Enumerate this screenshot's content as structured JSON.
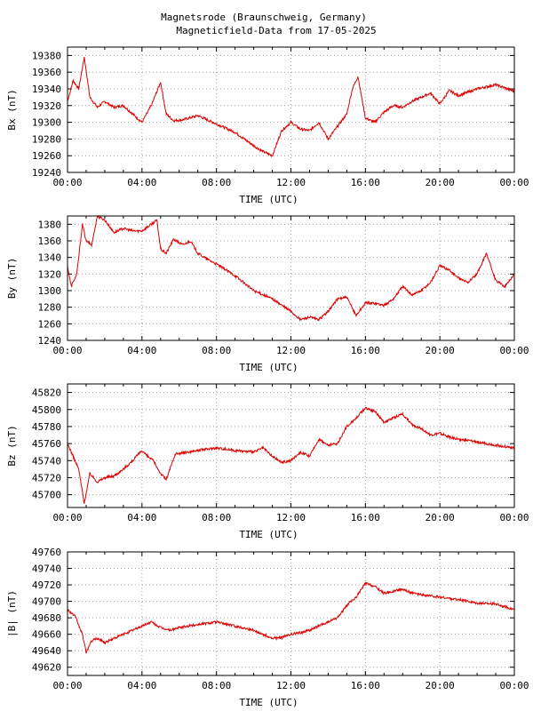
{
  "title_line1": "Magnetsrode (Braunschweig, Germany)",
  "title_line2": "Magneticfield-Data from 17-05-2025",
  "series_color": "#dd0000",
  "chart_data": [
    {
      "type": "line",
      "ylabel": "Bx (nT)",
      "xlabel": "TIME (UTC)",
      "xlim": [
        0,
        24
      ],
      "xticks": [
        "00:00",
        "04:00",
        "08:00",
        "12:00",
        "16:00",
        "20:00",
        "00:00"
      ],
      "ylim": [
        19240,
        19390
      ],
      "yticks": [
        19240,
        19260,
        19280,
        19300,
        19320,
        19340,
        19360,
        19380
      ],
      "series": [
        {
          "x": [
            0,
            0.3,
            0.6,
            0.9,
            1.2,
            1.6,
            2.0,
            2.5,
            3.0,
            3.5,
            4.0,
            4.5,
            5.0,
            5.3,
            5.7,
            6.2,
            7.0,
            8.0,
            9.0,
            10.0,
            10.5,
            11.0,
            11.5,
            12.0,
            12.5,
            13.0,
            13.5,
            14.0,
            14.5,
            15.0,
            15.3,
            15.6,
            16.0,
            16.5,
            17.0,
            17.5,
            18.0,
            18.5,
            19.0,
            19.5,
            20.0,
            20.5,
            21.0,
            22.0,
            23.0,
            24.0
          ],
          "y": [
            19325,
            19350,
            19340,
            19378,
            19330,
            19318,
            19325,
            19318,
            19320,
            19310,
            19300,
            19320,
            19348,
            19310,
            19302,
            19303,
            19308,
            19298,
            19288,
            19272,
            19265,
            19260,
            19290,
            19300,
            19292,
            19290,
            19300,
            19280,
            19295,
            19310,
            19340,
            19355,
            19305,
            19300,
            19312,
            19320,
            19318,
            19325,
            19330,
            19335,
            19322,
            19338,
            19332,
            19340,
            19345,
            19337
          ]
        }
      ]
    },
    {
      "type": "line",
      "ylabel": "By (nT)",
      "xlabel": "TIME (UTC)",
      "xlim": [
        0,
        24
      ],
      "xticks": [
        "00:00",
        "04:00",
        "08:00",
        "12:00",
        "16:00",
        "20:00",
        "00:00"
      ],
      "ylim": [
        1240,
        1390
      ],
      "yticks": [
        1240,
        1260,
        1280,
        1300,
        1320,
        1340,
        1360,
        1380
      ],
      "series": [
        {
          "x": [
            0,
            0.2,
            0.5,
            0.8,
            1.0,
            1.3,
            1.6,
            2.0,
            2.5,
            3.0,
            3.5,
            4.0,
            4.5,
            4.8,
            5.0,
            5.3,
            5.7,
            6.2,
            6.6,
            7.0,
            7.5,
            8.0,
            9.0,
            10.0,
            11.0,
            12.0,
            12.5,
            13.0,
            13.5,
            14.0,
            14.5,
            15.0,
            15.5,
            16.0,
            16.5,
            17.0,
            17.5,
            18.0,
            18.5,
            19.0,
            19.5,
            20.0,
            20.5,
            21.0,
            21.5,
            22.0,
            22.5,
            23.0,
            23.5,
            24.0
          ],
          "y": [
            1330,
            1305,
            1320,
            1380,
            1360,
            1355,
            1390,
            1385,
            1370,
            1375,
            1372,
            1372,
            1380,
            1385,
            1350,
            1345,
            1362,
            1355,
            1360,
            1345,
            1338,
            1332,
            1318,
            1300,
            1290,
            1275,
            1265,
            1268,
            1265,
            1275,
            1290,
            1292,
            1270,
            1285,
            1285,
            1282,
            1290,
            1305,
            1295,
            1300,
            1310,
            1330,
            1325,
            1315,
            1310,
            1320,
            1345,
            1312,
            1305,
            1320
          ]
        }
      ]
    },
    {
      "type": "line",
      "ylabel": "Bz (nT)",
      "xlabel": "TIME (UTC)",
      "xlim": [
        0,
        24
      ],
      "xticks": [
        "00:00",
        "04:00",
        "08:00",
        "12:00",
        "16:00",
        "20:00",
        "00:00"
      ],
      "ylim": [
        45685,
        45830
      ],
      "yticks": [
        45700,
        45720,
        45740,
        45760,
        45780,
        45800,
        45820
      ],
      "series": [
        {
          "x": [
            0,
            0.3,
            0.6,
            0.9,
            1.2,
            1.6,
            2.0,
            2.5,
            3.0,
            3.5,
            4.0,
            4.3,
            4.6,
            5.0,
            5.3,
            5.8,
            6.5,
            7.0,
            8.0,
            9.0,
            10.0,
            10.5,
            11.0,
            11.5,
            12.0,
            12.5,
            13.0,
            13.5,
            14.0,
            14.5,
            15.0,
            15.5,
            16.0,
            16.5,
            17.0,
            17.5,
            18.0,
            18.5,
            19.0,
            19.5,
            20.0,
            20.5,
            21.0,
            22.0,
            23.0,
            24.0
          ],
          "y": [
            45760,
            45745,
            45730,
            45690,
            45725,
            45715,
            45720,
            45722,
            45730,
            45740,
            45752,
            45745,
            45740,
            45725,
            45718,
            45748,
            45750,
            45752,
            45755,
            45752,
            45750,
            45755,
            45745,
            45738,
            45740,
            45750,
            45745,
            45765,
            45758,
            45760,
            45780,
            45790,
            45802,
            45798,
            45785,
            45790,
            45795,
            45782,
            45778,
            45770,
            45772,
            45768,
            45765,
            45762,
            45758,
            45755
          ]
        }
      ]
    },
    {
      "type": "line",
      "ylabel": "|B| (nT)",
      "xlabel": "TIME (UTC)",
      "xlim": [
        0,
        24
      ],
      "xticks": [
        "00:00",
        "04:00",
        "08:00",
        "12:00",
        "16:00",
        "20:00",
        "00:00"
      ],
      "ylim": [
        49610,
        49760
      ],
      "yticks": [
        49620,
        49640,
        49660,
        49680,
        49700,
        49720,
        49740,
        49760
      ],
      "series": [
        {
          "x": [
            0,
            0.4,
            0.8,
            1.0,
            1.3,
            1.6,
            2.0,
            2.5,
            3.0,
            3.5,
            4.0,
            4.5,
            5.0,
            5.5,
            6.0,
            7.0,
            8.0,
            9.0,
            10.0,
            10.5,
            11.0,
            11.5,
            12.0,
            12.5,
            13.0,
            13.5,
            14.0,
            14.5,
            15.0,
            15.5,
            16.0,
            16.5,
            17.0,
            17.5,
            18.0,
            18.5,
            19.0,
            20.0,
            21.0,
            22.0,
            23.0,
            24.0
          ],
          "y": [
            49690,
            49682,
            49660,
            49638,
            49652,
            49655,
            49650,
            49655,
            49660,
            49665,
            49670,
            49675,
            49668,
            49665,
            49668,
            49672,
            49675,
            49670,
            49665,
            49660,
            49655,
            49656,
            49660,
            49662,
            49665,
            49670,
            49675,
            49680,
            49695,
            49705,
            49722,
            49718,
            49710,
            49712,
            49715,
            49710,
            49708,
            49705,
            49702,
            49698,
            49697,
            49690
          ]
        }
      ]
    }
  ]
}
